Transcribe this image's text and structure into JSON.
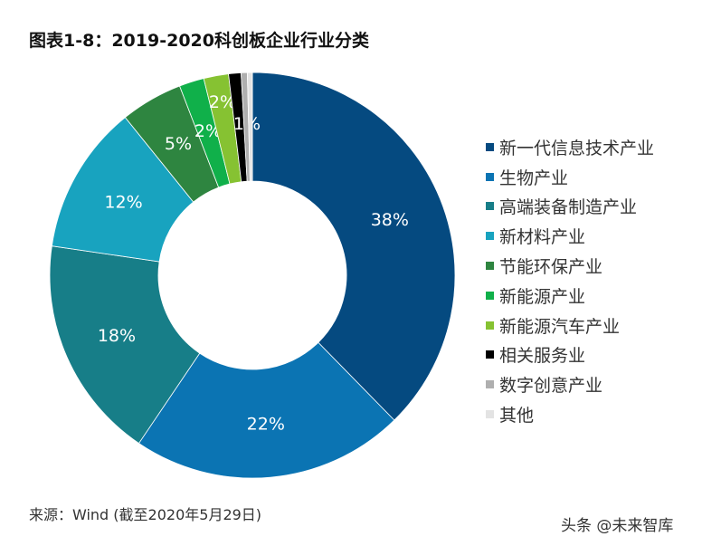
{
  "chart_data": {
    "type": "pie",
    "variant": "donut",
    "title": "图表1-8：2019-2020科创板企业行业分类",
    "legend_position": "right",
    "slices": [
      {
        "name": "新一代信息技术产业",
        "value": 38,
        "label": "38%",
        "color": "#054A80"
      },
      {
        "name": "生物产业",
        "value": 22,
        "label": "22%",
        "color": "#0B74B3"
      },
      {
        "name": "高端装备制造产业",
        "value": 18,
        "label": "18%",
        "color": "#177E88"
      },
      {
        "name": "新材料产业",
        "value": 12,
        "label": "12%",
        "color": "#18A3BF"
      },
      {
        "name": "节能环保产业",
        "value": 5,
        "label": "5%",
        "color": "#2E8540"
      },
      {
        "name": "新能源产业",
        "value": 2,
        "label": "2%",
        "color": "#10B04A"
      },
      {
        "name": "新能源汽车产业",
        "value": 2,
        "label": "2%",
        "color": "#86C232"
      },
      {
        "name": "相关服务业",
        "value": 1,
        "label": "1%",
        "color": "#000000"
      },
      {
        "name": "数字创意产业",
        "value": 0.5,
        "label": "",
        "color": "#AFAFAF"
      },
      {
        "name": "其他",
        "value": 0.4,
        "label": "",
        "color": "#E3E3E3"
      }
    ]
  },
  "source": "来源：Wind (截至2020年5月29日)",
  "watermark": "头条 @未来智库"
}
